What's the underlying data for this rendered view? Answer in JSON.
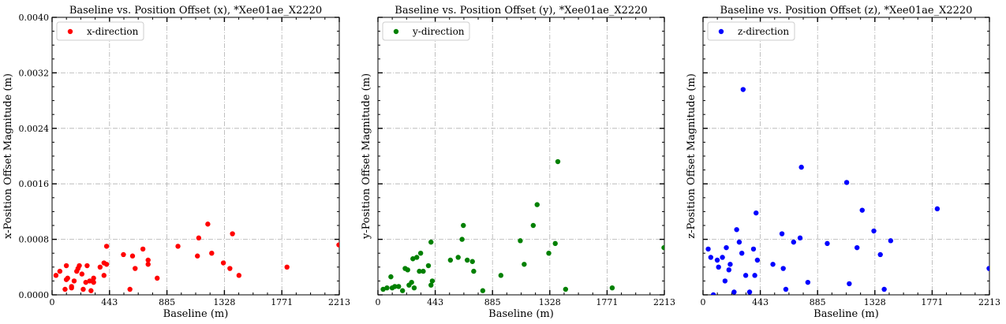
{
  "figure": {
    "background": "#ffffff"
  },
  "chart_data": [
    {
      "type": "scatter",
      "title": "Baseline vs. Position Offset (x), *Xee01ae_X2220",
      "xlabel": "Baseline (m)",
      "ylabel": "x-Position Offset Magnitude (m)",
      "xlim": [
        0,
        2213
      ],
      "ylim": [
        0,
        0.004
      ],
      "xticks": [
        "0",
        "443",
        "885",
        "1328",
        "1771",
        "2213"
      ],
      "yticks": [
        "0.0000",
        "0.0008",
        "0.0016",
        "0.0024",
        "0.0032",
        "0.0040"
      ],
      "show_yticklabels": true,
      "grid": true,
      "legend_position": "top-left",
      "series": [
        {
          "name": "x-direction",
          "color": "#ff0000",
          "points": [
            [
              30,
              0.00028
            ],
            [
              60,
              0.00034
            ],
            [
              100,
              8e-05
            ],
            [
              110,
              0.00022
            ],
            [
              110,
              0.00042
            ],
            [
              120,
              0.00024
            ],
            [
              150,
              0.00012
            ],
            [
              150,
              0.0001
            ],
            [
              170,
              0.0002
            ],
            [
              190,
              0.00034
            ],
            [
              200,
              0.00038
            ],
            [
              210,
              0.00042
            ],
            [
              230,
              0.0003
            ],
            [
              240,
              8e-05
            ],
            [
              260,
              0.00018
            ],
            [
              270,
              0.00042
            ],
            [
              290,
              0.0002
            ],
            [
              300,
              6e-05
            ],
            [
              320,
              0.00024
            ],
            [
              320,
              0.00018
            ],
            [
              370,
              0.0004
            ],
            [
              400,
              0.00046
            ],
            [
              400,
              0.00028
            ],
            [
              420,
              0.0007
            ],
            [
              420,
              0.00044
            ],
            [
              550,
              0.00058
            ],
            [
              600,
              8e-05
            ],
            [
              620,
              0.00056
            ],
            [
              640,
              0.00038
            ],
            [
              700,
              0.00066
            ],
            [
              740,
              0.00044
            ],
            [
              740,
              0.0005
            ],
            [
              810,
              0.00024
            ],
            [
              970,
              0.0007
            ],
            [
              1120,
              0.00056
            ],
            [
              1130,
              0.00082
            ],
            [
              1200,
              0.00102
            ],
            [
              1230,
              0.0006
            ],
            [
              1320,
              0.00046
            ],
            [
              1370,
              0.00038
            ],
            [
              1390,
              0.00088
            ],
            [
              1440,
              0.00028
            ],
            [
              1810,
              0.0004
            ],
            [
              2210,
              0.00072
            ]
          ]
        }
      ]
    },
    {
      "type": "scatter",
      "title": "Baseline vs. Position Offset (y), *Xee01ae_X2220",
      "xlabel": "Baseline (m)",
      "ylabel": "y-Position Offset Magnitude (m)",
      "xlim": [
        0,
        2213
      ],
      "ylim": [
        0,
        0.004
      ],
      "xticks": [
        "0",
        "443",
        "885",
        "1328",
        "1771",
        "2213"
      ],
      "yticks": [],
      "show_yticklabels": false,
      "grid": true,
      "legend_position": "top-left",
      "series": [
        {
          "name": "y-direction",
          "color": "#008000",
          "points": [
            [
              40,
              8e-05
            ],
            [
              70,
              0.0001
            ],
            [
              100,
              0.00026
            ],
            [
              110,
              0.0001
            ],
            [
              130,
              0.00012
            ],
            [
              160,
              0.00012
            ],
            [
              190,
              6e-05
            ],
            [
              210,
              0.00038
            ],
            [
              230,
              0.00036
            ],
            [
              240,
              0.00014
            ],
            [
              260,
              0.00018
            ],
            [
              270,
              0.00052
            ],
            [
              280,
              0.0001
            ],
            [
              300,
              0.00054
            ],
            [
              320,
              0.00034
            ],
            [
              330,
              0.0006
            ],
            [
              350,
              0.00034
            ],
            [
              390,
              0.00042
            ],
            [
              410,
              0.00076
            ],
            [
              410,
              0.00014
            ],
            [
              420,
              0.0002
            ],
            [
              560,
              0.0005
            ],
            [
              620,
              0.00054
            ],
            [
              650,
              0.0008
            ],
            [
              660,
              0.001
            ],
            [
              690,
              0.0005
            ],
            [
              730,
              0.00048
            ],
            [
              740,
              0.00034
            ],
            [
              810,
              6e-05
            ],
            [
              950,
              0.00028
            ],
            [
              1100,
              0.00078
            ],
            [
              1130,
              0.00044
            ],
            [
              1200,
              0.001
            ],
            [
              1230,
              0.0013
            ],
            [
              1320,
              0.0006
            ],
            [
              1370,
              0.00074
            ],
            [
              1390,
              0.00192
            ],
            [
              1450,
              8e-05
            ],
            [
              1810,
              0.0001
            ],
            [
              2210,
              0.00068
            ]
          ]
        }
      ]
    },
    {
      "type": "scatter",
      "title": "Baseline vs. Position Offset (z), *Xee01ae_X2220",
      "xlabel": "Baseline (m)",
      "ylabel": "z-Position Offset Magnitude (m)",
      "xlim": [
        0,
        2213
      ],
      "ylim": [
        0,
        0.004
      ],
      "xticks": [
        "0",
        "443",
        "885",
        "1328",
        "1771",
        "2213"
      ],
      "yticks": [],
      "show_yticklabels": false,
      "grid": true,
      "legend_position": "top-left",
      "series": [
        {
          "name": "z-direction",
          "color": "#0000ff",
          "points": [
            [
              40,
              0.00066
            ],
            [
              60,
              0.00054
            ],
            [
              80,
              0.0
            ],
            [
              110,
              0.0005
            ],
            [
              120,
              0.0004
            ],
            [
              150,
              0.00054
            ],
            [
              170,
              0.0002
            ],
            [
              180,
              0.00068
            ],
            [
              200,
              0.00036
            ],
            [
              210,
              0.00044
            ],
            [
              240,
              4e-05
            ],
            [
              260,
              0.00094
            ],
            [
              280,
              0.00076
            ],
            [
              300,
              0.0006
            ],
            [
              310,
              0.00296
            ],
            [
              330,
              0.00028
            ],
            [
              360,
              4e-05
            ],
            [
              390,
              0.00066
            ],
            [
              400,
              0.00028
            ],
            [
              410,
              0.00118
            ],
            [
              420,
              0.0005
            ],
            [
              540,
              0.00044
            ],
            [
              610,
              0.00088
            ],
            [
              620,
              0.00038
            ],
            [
              640,
              8e-05
            ],
            [
              700,
              0.00076
            ],
            [
              750,
              0.00082
            ],
            [
              760,
              0.00184
            ],
            [
              810,
              0.00018
            ],
            [
              960,
              0.00074
            ],
            [
              1110,
              0.00162
            ],
            [
              1130,
              0.00016
            ],
            [
              1190,
              0.00068
            ],
            [
              1230,
              0.00122
            ],
            [
              1320,
              0.00092
            ],
            [
              1370,
              0.00058
            ],
            [
              1400,
              8e-05
            ],
            [
              1450,
              0.00078
            ],
            [
              1810,
              0.00124
            ],
            [
              2210,
              0.00038
            ]
          ]
        }
      ]
    }
  ]
}
